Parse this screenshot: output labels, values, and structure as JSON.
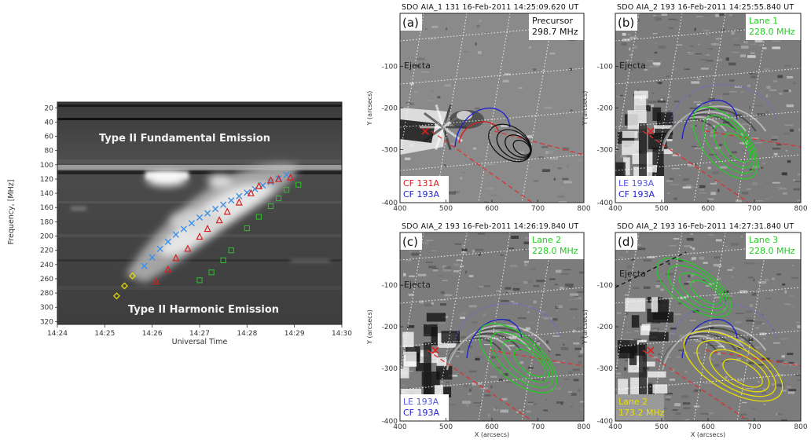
{
  "spectrogram": {
    "labels": [
      "Type II Fundamental Emission",
      "Type II Harmonic Emission"
    ],
    "xlabel": "Universal Time",
    "ylabel": "Frequency, [MHz]",
    "xticks": [
      "14:24",
      "14:25",
      "14:26",
      "14:27",
      "14:28",
      "14:29",
      "14:30"
    ],
    "yticks": [
      "20",
      "40",
      "60",
      "80",
      "100",
      "120",
      "140",
      "160",
      "180",
      "200",
      "220",
      "240",
      "260",
      "280",
      "300",
      "320"
    ]
  },
  "panels": [
    {
      "letter": "(a)",
      "title": "SDO AIA_1 131 16-Feb-2011 14:25:09.620 UT",
      "box_lines": [
        "Precursor",
        "298.7 MHz"
      ],
      "box_color": "#111111",
      "ejecta": "Ejecta",
      "legend": [
        {
          "text": "CF 131A",
          "color": "#d42020"
        },
        {
          "text": "CF 193A",
          "color": "#2222cc"
        }
      ],
      "contour_color": "#111111",
      "ylabel": "Y (arcsecs)",
      "xlabel": "",
      "xticks": [
        "400",
        "500",
        "600",
        "700",
        "800"
      ],
      "yticks": [
        "-100",
        "-200",
        "-300",
        "-400"
      ]
    },
    {
      "letter": "(b)",
      "title": "SDO AIA_2 193 16-Feb-2011 14:25:55.840 UT",
      "box_lines": [
        "Lane 1",
        "228.0 MHz"
      ],
      "box_color": "#22cc22",
      "ejecta": "Ejecta",
      "legend": [
        {
          "text": "LE 193A",
          "color": "#5555dd"
        },
        {
          "text": "CF 193A",
          "color": "#2222cc"
        }
      ],
      "contour_color": "#22cc22",
      "ylabel": "Y (arcsecs)",
      "xlabel": "",
      "xticks": [
        "400",
        "500",
        "600",
        "700",
        "800"
      ],
      "yticks": [
        "-100",
        "-200",
        "-300",
        "-400"
      ]
    },
    {
      "letter": "(c)",
      "title": "SDO AIA_2 193 16-Feb-2011 14:26:19.840 UT",
      "box_lines": [
        "Lane 2",
        "228.0 MHz"
      ],
      "box_color": "#22cc22",
      "ejecta": "Ejecta",
      "legend": [
        {
          "text": "LE 193A",
          "color": "#5555dd"
        },
        {
          "text": "CF 193A",
          "color": "#2222cc"
        }
      ],
      "contour_color": "#22cc22",
      "ylabel": "Y (arcsecs)",
      "xlabel": "X (arcsecs)",
      "xticks": [
        "400",
        "500",
        "600",
        "700",
        "800"
      ],
      "yticks": [
        "-100",
        "-200",
        "-300",
        "-400"
      ]
    },
    {
      "letter": "(d)",
      "title": "SDO AIA_2 193 16-Feb-2011 14:27:31.840 UT",
      "box_lines": [
        "Lane 3",
        "228.0 MHz"
      ],
      "box_color": "#22cc22",
      "ejecta": "Ejecta",
      "legend": [
        {
          "text": "Lane 2",
          "color": "#e8e000"
        },
        {
          "text": "173.2 MHz",
          "color": "#e8e000"
        }
      ],
      "contour_color": "#22cc22",
      "ylabel": "Y (arcsecs)",
      "xlabel": "X (arcsecs)",
      "xticks": [
        "400",
        "500",
        "600",
        "700",
        "800"
      ],
      "yticks": [
        "-100",
        "-200",
        "-300",
        "-400"
      ]
    }
  ],
  "chart_data": {
    "type": "scatter",
    "xlabel": "Universal Time",
    "ylabel": "Frequency, [MHz]",
    "xlim": [
      "14:24",
      "14:30"
    ],
    "ylim": [
      320,
      20
    ],
    "series": [
      {
        "marker": "x",
        "color": "#3d8fe6",
        "points": [
          [
            "14:25:50",
            242
          ],
          [
            "14:26:00",
            230
          ],
          [
            "14:26:10",
            218
          ],
          [
            "14:26:20",
            208
          ],
          [
            "14:26:30",
            198
          ],
          [
            "14:26:40",
            190
          ],
          [
            "14:26:50",
            182
          ],
          [
            "14:27:00",
            174
          ],
          [
            "14:27:10",
            168
          ],
          [
            "14:27:20",
            162
          ],
          [
            "14:27:30",
            156
          ],
          [
            "14:27:40",
            150
          ],
          [
            "14:27:50",
            144
          ],
          [
            "14:28:00",
            139
          ],
          [
            "14:28:10",
            134
          ],
          [
            "14:28:20",
            129
          ],
          [
            "14:28:30",
            124
          ],
          [
            "14:28:40",
            119
          ],
          [
            "14:28:50",
            114
          ]
        ]
      },
      {
        "marker": "triangle",
        "color": "#d42020",
        "points": [
          [
            "14:26:05",
            264
          ],
          [
            "14:26:20",
            247
          ],
          [
            "14:26:30",
            231
          ],
          [
            "14:26:45",
            218
          ],
          [
            "14:27:00",
            201
          ],
          [
            "14:27:10",
            190
          ],
          [
            "14:27:25",
            178
          ],
          [
            "14:27:35",
            166
          ],
          [
            "14:27:50",
            153
          ],
          [
            "14:28:05",
            140
          ],
          [
            "14:28:15",
            130
          ],
          [
            "14:28:30",
            122
          ],
          [
            "14:28:40",
            120
          ],
          [
            "14:28:55",
            118
          ]
        ]
      },
      {
        "marker": "square",
        "color": "#2fb82f",
        "points": [
          [
            "14:27:00",
            262
          ],
          [
            "14:27:15",
            251
          ],
          [
            "14:27:30",
            234
          ],
          [
            "14:27:40",
            220
          ],
          [
            "14:28:00",
            189
          ],
          [
            "14:28:15",
            173
          ],
          [
            "14:28:30",
            158
          ],
          [
            "14:28:40",
            147
          ],
          [
            "14:28:50",
            135
          ],
          [
            "14:29:05",
            128
          ]
        ]
      },
      {
        "marker": "diamond",
        "color": "#e8d800",
        "points": [
          [
            "14:25:15",
            284
          ],
          [
            "14:25:25",
            270
          ],
          [
            "14:25:35",
            256
          ]
        ]
      }
    ]
  }
}
